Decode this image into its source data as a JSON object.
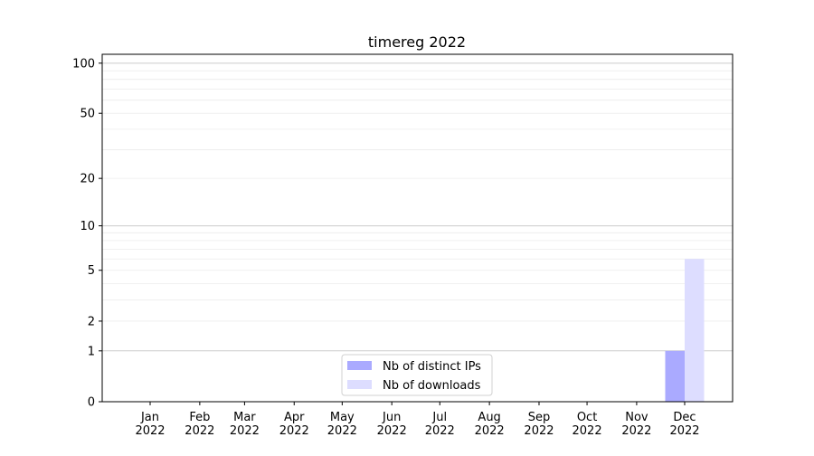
{
  "chart_data": {
    "type": "bar",
    "title": "timereg 2022",
    "xlabel": "",
    "ylabel": "",
    "y_scale": "log(1+y)",
    "ylim": [
      0,
      113
    ],
    "y_ticks": [
      0,
      1,
      2,
      5,
      10,
      20,
      50,
      100
    ],
    "y_major_grid": [
      1,
      10,
      100
    ],
    "y_minor_grid": [
      2,
      3,
      4,
      5,
      6,
      7,
      8,
      9,
      20,
      30,
      40,
      50,
      60,
      70,
      80,
      90
    ],
    "grid": "horizontal",
    "x_ticks": [
      {
        "date": "2022-01-01",
        "label": [
          "Jan",
          "2022"
        ]
      },
      {
        "date": "2022-02-01",
        "label": [
          "Feb",
          "2022"
        ]
      },
      {
        "date": "2022-03-01",
        "label": [
          "Mar",
          "2022"
        ]
      },
      {
        "date": "2022-04-01",
        "label": [
          "Apr",
          "2022"
        ]
      },
      {
        "date": "2022-05-01",
        "label": [
          "May",
          "2022"
        ]
      },
      {
        "date": "2022-06-01",
        "label": [
          "Jun",
          "2022"
        ]
      },
      {
        "date": "2022-07-01",
        "label": [
          "Jul",
          "2022"
        ]
      },
      {
        "date": "2022-08-01",
        "label": [
          "Aug",
          "2022"
        ]
      },
      {
        "date": "2022-09-01",
        "label": [
          "Sep",
          "2022"
        ]
      },
      {
        "date": "2022-10-01",
        "label": [
          "Oct",
          "2022"
        ]
      },
      {
        "date": "2022-11-01",
        "label": [
          "Nov",
          "2022"
        ]
      },
      {
        "date": "2022-12-01",
        "label": [
          "Dec",
          "2022"
        ]
      }
    ],
    "categories": [
      "2022-12"
    ],
    "series": [
      {
        "name": "Nb of distinct IPs",
        "color": "#aaaaff",
        "values": [
          1
        ]
      },
      {
        "name": "Nb of downloads",
        "color": "#ddddff",
        "values": [
          6
        ]
      }
    ],
    "legend": "bottom-center"
  }
}
